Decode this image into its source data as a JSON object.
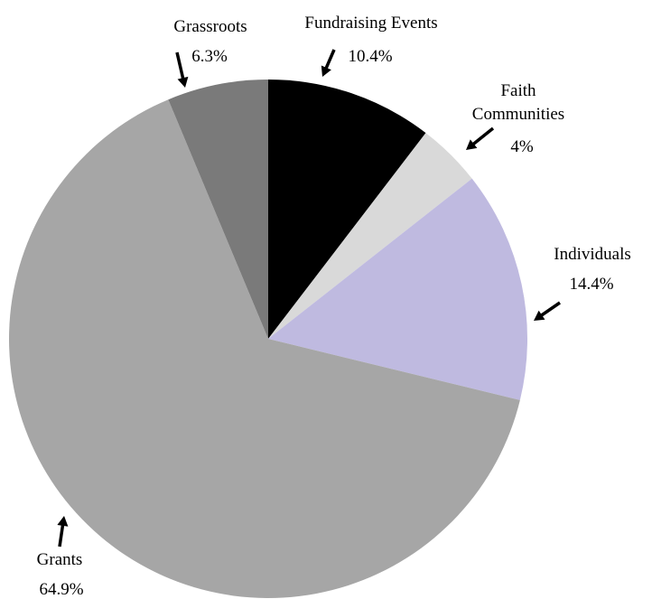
{
  "chart_data": {
    "type": "pie",
    "title": "",
    "start_angle_deg": 0,
    "direction": "clockwise",
    "slices": [
      {
        "label": "Fundraising Events",
        "value": 10.4,
        "value_label": "10.4%",
        "color": "#000000"
      },
      {
        "label": "Faith Communities",
        "value": 4.0,
        "value_label": "4%",
        "color": "#d9d9d9"
      },
      {
        "label": "Individuals",
        "value": 14.4,
        "value_label": "14.4%",
        "color": "#bfbae0"
      },
      {
        "label": "Grants",
        "value": 64.9,
        "value_label": "64.9%",
        "color": "#a6a6a6"
      },
      {
        "label": "Grassroots",
        "value": 6.3,
        "value_label": "6.3%",
        "color": "#7a7a7a"
      }
    ],
    "label_lines": [
      [
        "Fundraising Events"
      ],
      [
        "Faith",
        "Communities"
      ],
      [
        "Individuals"
      ],
      [
        "Grants"
      ],
      [
        "Grassroots"
      ]
    ]
  }
}
